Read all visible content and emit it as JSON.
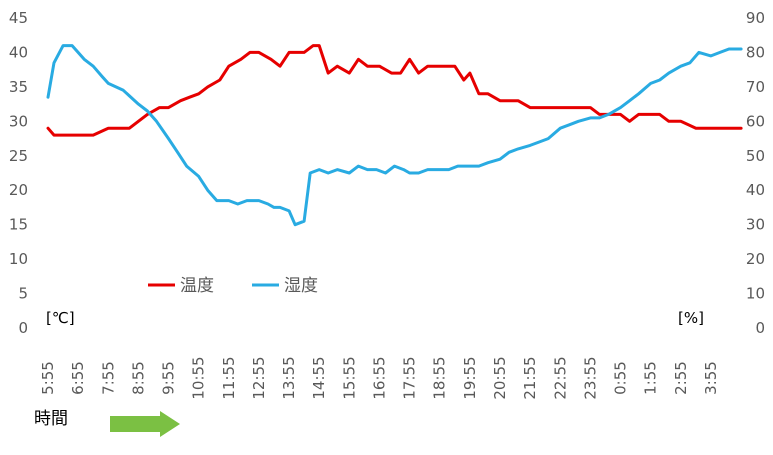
{
  "chart_data": {
    "type": "line",
    "x_tick_labels": [
      "5:55",
      "6:55",
      "7:55",
      "8:55",
      "9:55",
      "10:55",
      "11:55",
      "12:55",
      "13:55",
      "14:55",
      "15:55",
      "16:55",
      "17:55",
      "18:55",
      "19:55",
      "20:55",
      "21:55",
      "22:55",
      "23:55",
      "0:55",
      "1:55",
      "2:55",
      "3:55"
    ],
    "y_left": {
      "unit": "[℃]",
      "min": 0,
      "max": 45,
      "step": 5
    },
    "y_right": {
      "unit": "[%]",
      "min": 0,
      "max": 90,
      "step": 10
    },
    "xlabel": "時間",
    "grid": false,
    "legend_position": "center-left",
    "series": [
      {
        "name": "温度",
        "axis": "left",
        "color": "#e60000",
        "x": [
          0,
          0.2,
          0.5,
          1,
          1.5,
          2,
          2.5,
          2.7,
          3,
          3.3,
          3.7,
          4,
          4.4,
          4.7,
          5,
          5.3,
          5.7,
          6,
          6.4,
          6.7,
          7,
          7.4,
          7.7,
          8,
          8.5,
          8.8,
          9,
          9.3,
          9.6,
          10,
          10.3,
          10.6,
          11,
          11.4,
          11.7,
          12,
          12.3,
          12.6,
          12.9,
          13.2,
          13.5,
          13.8,
          14,
          14.3,
          14.6,
          15,
          15.3,
          15.6,
          16,
          16.3,
          16.6,
          17,
          17.3,
          17.6,
          18,
          18.3,
          18.6,
          19,
          19.3,
          19.6,
          20,
          20.3,
          20.6,
          21,
          21.5,
          22,
          22.4,
          23
        ],
        "values": [
          29,
          28,
          28,
          28,
          28,
          29,
          29,
          29,
          30,
          31,
          32,
          32,
          33,
          33.5,
          34,
          35,
          36,
          38,
          39,
          40,
          40,
          39,
          38,
          40,
          40,
          41,
          41,
          37,
          38,
          37,
          39,
          38,
          38,
          37,
          37,
          39,
          37,
          38,
          38,
          38,
          38,
          36,
          37,
          34,
          34,
          33,
          33,
          33,
          32,
          32,
          32,
          32,
          32,
          32,
          32,
          31,
          31,
          31,
          30,
          31,
          31,
          31,
          30,
          30,
          29,
          29,
          29,
          29
        ]
      },
      {
        "name": "湿度",
        "axis": "right",
        "color": "#29abe2",
        "x": [
          0,
          0.2,
          0.5,
          0.8,
          1,
          1.2,
          1.5,
          1.8,
          2,
          2.5,
          3,
          3.3,
          3.6,
          4,
          4.3,
          4.6,
          5,
          5.3,
          5.6,
          6,
          6.3,
          6.6,
          7,
          7.3,
          7.5,
          7.7,
          8,
          8.2,
          8.5,
          8.7,
          9,
          9.3,
          9.6,
          10,
          10.3,
          10.6,
          10.9,
          11.2,
          11.5,
          11.8,
          12,
          12.3,
          12.6,
          13,
          13.3,
          13.6,
          14,
          14.3,
          14.6,
          15,
          15.3,
          15.6,
          16,
          16.3,
          16.6,
          17,
          17.3,
          17.6,
          18,
          18.3,
          18.6,
          19,
          19.3,
          19.6,
          20,
          20.3,
          20.6,
          21,
          21.3,
          21.6,
          22,
          22.3,
          22.6,
          23
        ],
        "values": [
          67,
          77,
          82,
          82,
          80,
          78,
          76,
          73,
          71,
          69,
          65,
          63,
          60,
          55,
          51,
          47,
          44,
          40,
          37,
          37,
          36,
          37,
          37,
          36,
          35,
          35,
          34,
          30,
          31,
          45,
          46,
          45,
          46,
          45,
          47,
          46,
          46,
          45,
          47,
          46,
          45,
          45,
          46,
          46,
          46,
          47,
          47,
          47,
          48,
          49,
          51,
          52,
          53,
          54,
          55,
          58,
          59,
          60,
          61,
          61,
          62,
          64,
          66,
          68,
          71,
          72,
          74,
          76,
          77,
          80,
          79,
          80,
          81,
          81
        ]
      }
    ]
  }
}
